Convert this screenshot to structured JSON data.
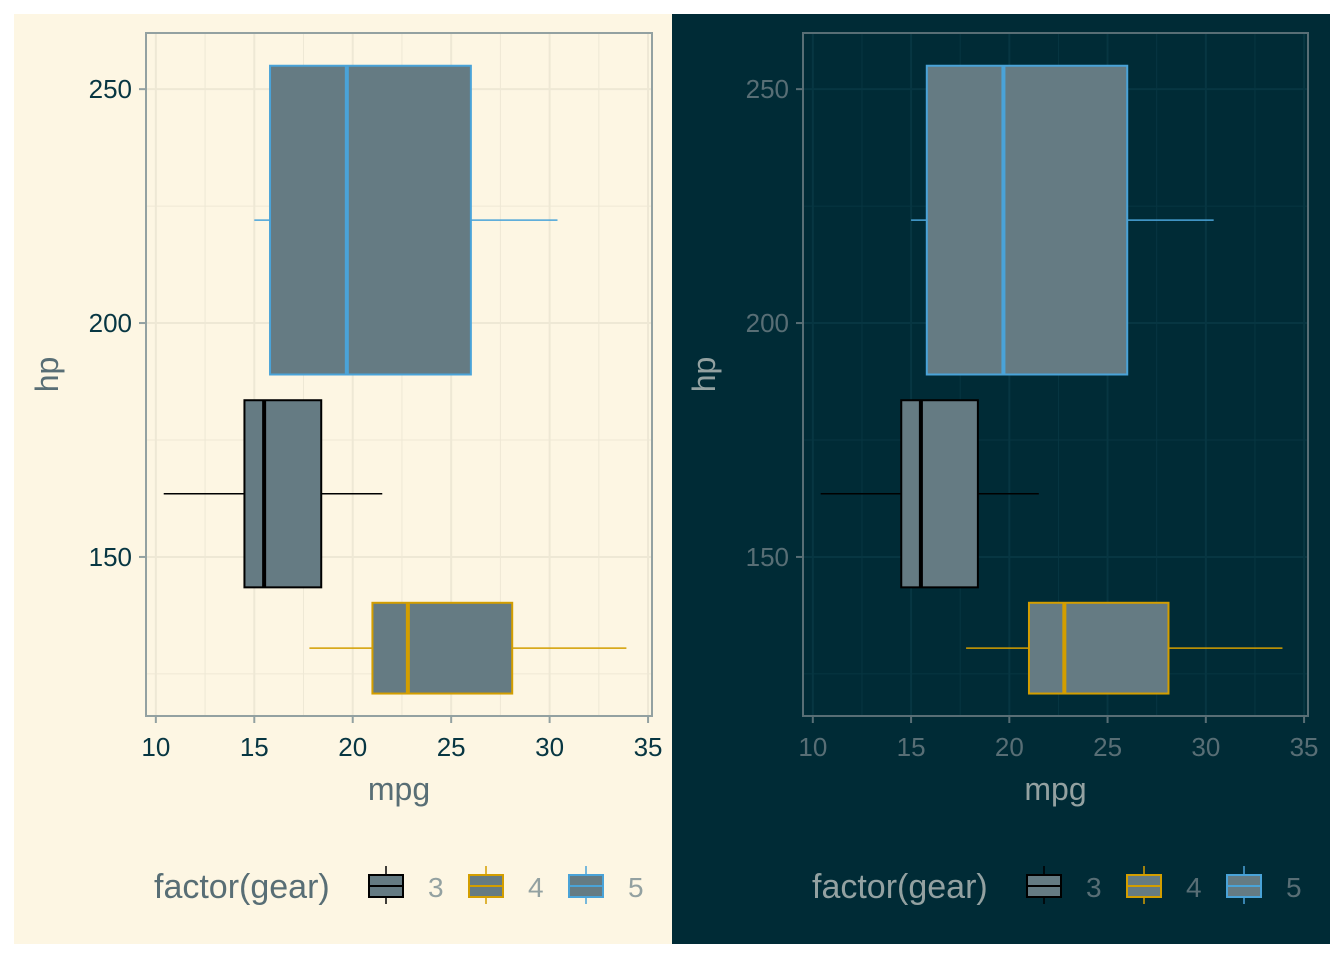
{
  "chart_data": [
    {
      "type": "boxplot",
      "theme": "solarized-light",
      "colors": {
        "panel_bg": "#fdf6e3",
        "grid": "#eee8d5",
        "frame": "#93a1a1",
        "tick_text": "#073642",
        "title_text": "#586e75",
        "legend_text": "#93a1a1",
        "box_fill": "#657b83"
      },
      "orientation": "horizontal",
      "xlabel": "mpg",
      "ylabel": "hp",
      "xlim": [
        9.5,
        35.2
      ],
      "ylim": [
        116,
        262
      ],
      "xticks": [
        10,
        15,
        20,
        25,
        30,
        35
      ],
      "yticks": [
        150,
        200,
        250
      ],
      "grid": true,
      "legend": {
        "title": "factor(gear)",
        "position": "bottom",
        "items": [
          {
            "label": "3",
            "color": "#000000"
          },
          {
            "label": "4",
            "color": "#d39e00"
          },
          {
            "label": "5",
            "color": "#4aa3d8"
          }
        ]
      },
      "series": [
        {
          "name": "3",
          "color": "#000000",
          "y_center": 163.5,
          "y_half": 20,
          "whisker_low": 10.4,
          "q1": 14.5,
          "median": 15.5,
          "q3": 18.4,
          "whisker_high": 21.5
        },
        {
          "name": "4",
          "color": "#d39e00",
          "y_center": 130.5,
          "y_half": 9.7,
          "whisker_low": 17.8,
          "q1": 21.0,
          "median": 22.8,
          "q3": 28.1,
          "whisker_high": 33.9
        },
        {
          "name": "5",
          "color": "#4aa3d8",
          "y_center": 222,
          "y_half": 33,
          "whisker_low": 15.0,
          "q1": 15.8,
          "median": 19.7,
          "q3": 26.0,
          "whisker_high": 30.4
        }
      ]
    },
    {
      "type": "boxplot",
      "theme": "solarized-dark",
      "colors": {
        "panel_bg": "#002b36",
        "grid": "#073642",
        "frame": "#586e75",
        "tick_text": "#586e75",
        "title_text": "#93a1a1",
        "legend_text": "#586e75",
        "box_fill": "#657b83"
      },
      "orientation": "horizontal",
      "xlabel": "mpg",
      "ylabel": "hp",
      "xlim": [
        9.5,
        35.2
      ],
      "ylim": [
        116,
        262
      ],
      "xticks": [
        10,
        15,
        20,
        25,
        30,
        35
      ],
      "yticks": [
        150,
        200,
        250
      ],
      "grid": true,
      "legend": {
        "title": "factor(gear)",
        "position": "bottom",
        "items": [
          {
            "label": "3",
            "color": "#000000"
          },
          {
            "label": "4",
            "color": "#d39e00"
          },
          {
            "label": "5",
            "color": "#4aa3d8"
          }
        ]
      },
      "series": [
        {
          "name": "3",
          "color": "#000000",
          "y_center": 163.5,
          "y_half": 20,
          "whisker_low": 10.4,
          "q1": 14.5,
          "median": 15.5,
          "q3": 18.4,
          "whisker_high": 21.5
        },
        {
          "name": "4",
          "color": "#d39e00",
          "y_center": 130.5,
          "y_half": 9.7,
          "whisker_low": 17.8,
          "q1": 21.0,
          "median": 22.8,
          "q3": 28.1,
          "whisker_high": 33.9
        },
        {
          "name": "5",
          "color": "#4aa3d8",
          "y_center": 222,
          "y_half": 33,
          "whisker_low": 15.0,
          "q1": 15.8,
          "median": 19.7,
          "q3": 26.0,
          "whisker_high": 30.4
        }
      ]
    }
  ]
}
